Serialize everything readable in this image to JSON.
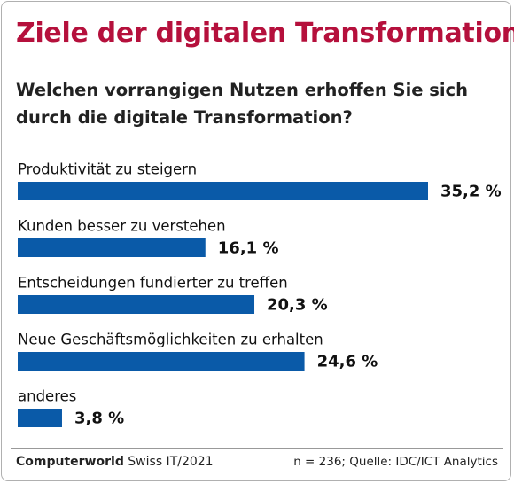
{
  "chart_data": {
    "type": "bar",
    "orientation": "horizontal",
    "title": "Ziele der digitalen Transformation",
    "subtitle": "Welchen vorrangigen Nutzen erhoffen Sie sich durch die digitale Transformation?",
    "categories": [
      "Produktivität zu steigern",
      "Kunden besser zu verstehen",
      "Entscheidungen fundierter zu treffen",
      "Neue Geschäftsmöglichkeiten zu erhalten",
      "anderes"
    ],
    "values": [
      35.2,
      16.1,
      20.3,
      24.6,
      3.8
    ],
    "value_labels": [
      "35,2 %",
      "16,1 %",
      "20,3 %",
      "24,6 %",
      "3,8 %"
    ],
    "color": "#0a5aa8",
    "publisher": "Computerworld",
    "edition": "Swiss IT/2021",
    "source": "n = 236; Quelle: IDC/ICT Analytics"
  }
}
